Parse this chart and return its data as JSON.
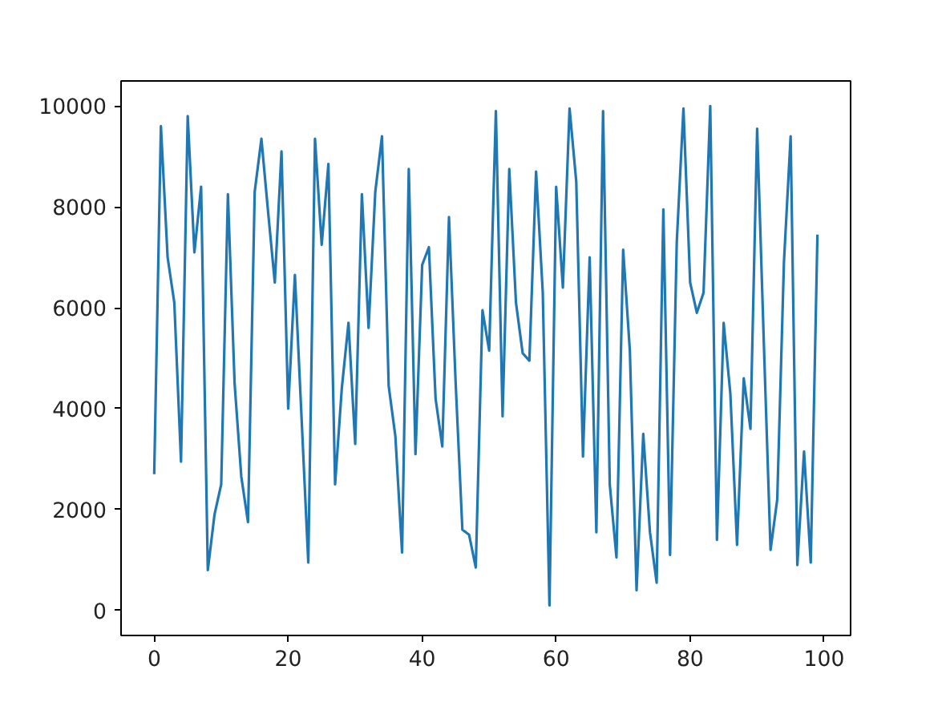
{
  "chart_data": {
    "type": "line",
    "x": [
      0,
      1,
      2,
      3,
      4,
      5,
      6,
      7,
      8,
      9,
      10,
      11,
      12,
      13,
      14,
      15,
      16,
      17,
      18,
      19,
      20,
      21,
      22,
      23,
      24,
      25,
      26,
      27,
      28,
      29,
      30,
      31,
      32,
      33,
      34,
      35,
      36,
      37,
      38,
      39,
      40,
      41,
      42,
      43,
      44,
      45,
      46,
      47,
      48,
      49,
      50,
      51,
      52,
      53,
      54,
      55,
      56,
      57,
      58,
      59,
      60,
      61,
      62,
      63,
      64,
      65,
      66,
      67,
      68,
      69,
      70,
      71,
      72,
      73,
      74,
      75,
      76,
      77,
      78,
      79,
      80,
      81,
      82,
      83,
      84,
      85,
      86,
      87,
      88,
      89,
      90,
      91,
      92,
      93,
      94,
      95,
      96,
      97,
      98,
      99
    ],
    "series": [
      {
        "color": "#1f77b4",
        "values": [
          2700,
          9600,
          7000,
          6100,
          2950,
          9800,
          7100,
          8400,
          800,
          1900,
          2500,
          8250,
          4500,
          2650,
          1750,
          8300,
          9350,
          7900,
          6500,
          9100,
          4000,
          6650,
          3800,
          950,
          9350,
          7250,
          8850,
          2500,
          4400,
          5700,
          3300,
          8250,
          5600,
          8300,
          9400,
          4450,
          3450,
          1150,
          8750,
          3100,
          6850,
          7200,
          4200,
          3250,
          7800,
          4500,
          1600,
          1500,
          850,
          5950,
          5150,
          9900,
          3850,
          8750,
          6100,
          5100,
          4950,
          8700,
          6300,
          100,
          8400,
          6400,
          9950,
          8500,
          3050,
          7000,
          1550,
          9900,
          2500,
          1050,
          7150,
          5150,
          400,
          3500,
          1550,
          550,
          7950,
          1100,
          7300,
          9950,
          6500,
          5900,
          6300,
          10000,
          1400,
          5700,
          4300,
          1300,
          4600,
          3600,
          9550,
          5300,
          1200,
          2200,
          6900,
          9400,
          900,
          3150,
          950,
          7450
        ]
      }
    ],
    "xlim": [
      -4.95,
      103.95
    ],
    "ylim": [
      -497,
      10497
    ],
    "xticks": [
      0,
      20,
      40,
      60,
      80,
      100
    ],
    "yticks": [
      0,
      2000,
      4000,
      6000,
      8000,
      10000
    ],
    "grid": false,
    "line_style": "solid",
    "marker": "none"
  }
}
